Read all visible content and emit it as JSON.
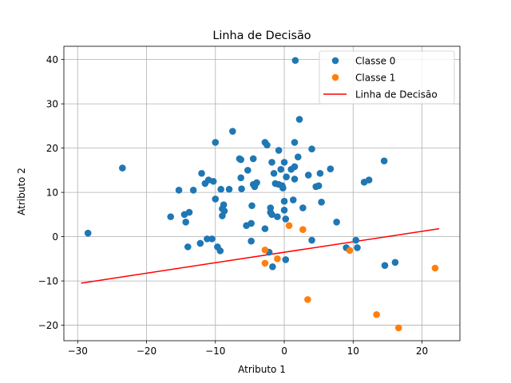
{
  "chart_data": {
    "type": "scatter",
    "title": "Linha de Decisão",
    "xlabel": "Atributo 1",
    "ylabel": "Atributo 2",
    "xlim": [
      -32,
      25.5
    ],
    "ylim": [
      -23.5,
      43
    ],
    "xticks": [
      -30,
      -20,
      -10,
      0,
      10,
      20
    ],
    "yticks": [
      -20,
      -10,
      0,
      10,
      20,
      30,
      40
    ],
    "grid": true,
    "legend_position": "top-right",
    "series": [
      {
        "name": "Classe 0",
        "kind": "scatter",
        "color": "#1f77b4",
        "points": [
          [
            -28.5,
            0.8
          ],
          [
            -23.5,
            15.5
          ],
          [
            -16.5,
            4.5
          ],
          [
            -15.3,
            10.5
          ],
          [
            -14.5,
            5.0
          ],
          [
            -14.3,
            3.3
          ],
          [
            -14.0,
            -2.3
          ],
          [
            -13.8,
            5.5
          ],
          [
            -13.2,
            10.5
          ],
          [
            -12.2,
            -1.5
          ],
          [
            -12.0,
            14.3
          ],
          [
            -11.5,
            12.0
          ],
          [
            -11.2,
            -0.5
          ],
          [
            -11.0,
            12.8
          ],
          [
            -10.5,
            -0.5
          ],
          [
            -10.3,
            12.5
          ],
          [
            -10.0,
            21.3
          ],
          [
            -10.0,
            8.5
          ],
          [
            -9.7,
            -2.3
          ],
          [
            -9.3,
            -3.2
          ],
          [
            -9.2,
            10.7
          ],
          [
            -9.0,
            6.3
          ],
          [
            -9.0,
            4.7
          ],
          [
            -8.8,
            7.2
          ],
          [
            -8.7,
            5.8
          ],
          [
            -8.0,
            10.7
          ],
          [
            -7.5,
            23.8
          ],
          [
            -6.5,
            17.6
          ],
          [
            -6.3,
            17.4
          ],
          [
            -6.3,
            13.3
          ],
          [
            -6.2,
            10.8
          ],
          [
            -5.5,
            2.5
          ],
          [
            -5.3,
            15.0
          ],
          [
            -4.8,
            3.0
          ],
          [
            -4.8,
            -1.0
          ],
          [
            -4.7,
            7.0
          ],
          [
            -4.5,
            17.6
          ],
          [
            -4.5,
            11.8
          ],
          [
            -4.3,
            11.3
          ],
          [
            -4.0,
            12.2
          ],
          [
            -2.8,
            21.3
          ],
          [
            -2.8,
            1.8
          ],
          [
            -2.5,
            20.7
          ],
          [
            -2.2,
            -3.5
          ],
          [
            -2.0,
            5.5
          ],
          [
            -2.0,
            6.5
          ],
          [
            -1.8,
            16.8
          ],
          [
            -1.8,
            5.0
          ],
          [
            -1.7,
            -6.8
          ],
          [
            -1.5,
            14.3
          ],
          [
            -1.3,
            12.0
          ],
          [
            -1.0,
            4.5
          ],
          [
            -0.8,
            11.8
          ],
          [
            -0.8,
            19.5
          ],
          [
            -0.5,
            15.2
          ],
          [
            -0.3,
            11.5
          ],
          [
            -0.2,
            11.0
          ],
          [
            0.0,
            16.8
          ],
          [
            0.0,
            6.0
          ],
          [
            0.0,
            8.0
          ],
          [
            0.2,
            4.0
          ],
          [
            0.2,
            -5.2
          ],
          [
            0.3,
            13.5
          ],
          [
            1.0,
            15.2
          ],
          [
            1.3,
            8.3
          ],
          [
            1.5,
            15.8
          ],
          [
            1.5,
            21.3
          ],
          [
            1.5,
            13.0
          ],
          [
            1.6,
            39.8
          ],
          [
            2.0,
            18.0
          ],
          [
            2.2,
            26.5
          ],
          [
            2.7,
            6.5
          ],
          [
            3.5,
            13.9
          ],
          [
            4.0,
            19.8
          ],
          [
            4.0,
            -0.8
          ],
          [
            4.6,
            11.3
          ],
          [
            5.0,
            11.5
          ],
          [
            5.2,
            14.3
          ],
          [
            5.4,
            7.8
          ],
          [
            6.7,
            15.3
          ],
          [
            7.6,
            3.3
          ],
          [
            9.0,
            -2.5
          ],
          [
            10.4,
            -0.8
          ],
          [
            10.6,
            -2.5
          ],
          [
            11.6,
            12.3
          ],
          [
            12.3,
            12.8
          ],
          [
            14.5,
            17.1
          ],
          [
            14.6,
            -6.5
          ],
          [
            16.1,
            -5.8
          ]
        ]
      },
      {
        "name": "Classe 1",
        "kind": "scatter",
        "color": "#ff7f0e",
        "points": [
          [
            -2.8,
            -3.0
          ],
          [
            -2.8,
            -6.0
          ],
          [
            -1.0,
            -5.0
          ],
          [
            0.7,
            2.5
          ],
          [
            2.7,
            1.6
          ],
          [
            3.4,
            -14.2
          ],
          [
            9.5,
            -3.1
          ],
          [
            13.4,
            -17.6
          ],
          [
            16.6,
            -20.6
          ],
          [
            21.9,
            -7.1
          ]
        ]
      },
      {
        "name": "Linha de Decisão",
        "kind": "line",
        "color": "#ff0000",
        "points": [
          [
            -29.5,
            -10.5
          ],
          [
            22.5,
            1.8
          ]
        ]
      }
    ]
  }
}
